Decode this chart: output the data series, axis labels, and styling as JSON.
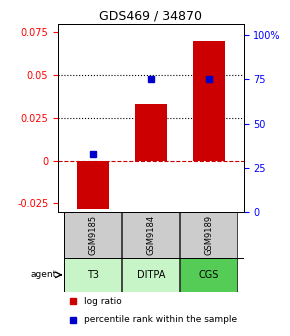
{
  "title": "GDS469 / 34870",
  "samples": [
    "GSM9185",
    "GSM9184",
    "GSM9189"
  ],
  "agents": [
    "T3",
    "DITPA",
    "CGS"
  ],
  "log_ratios": [
    -0.028,
    0.033,
    0.07
  ],
  "percentile_ranks_pct": [
    33,
    75,
    75
  ],
  "bar_color": "#cc0000",
  "dot_color": "#0000cc",
  "ylim_left": [
    -0.03,
    0.08
  ],
  "ylim_right": [
    0,
    106.67
  ],
  "yticks_left": [
    -0.025,
    0,
    0.025,
    0.05,
    0.075
  ],
  "yticks_right": [
    0,
    25,
    50,
    75,
    100
  ],
  "ytick_labels_right": [
    "0",
    "25",
    "50",
    "75",
    "100%"
  ],
  "dotted_lines": [
    0.025,
    0.05
  ],
  "zero_line": 0,
  "agent_colors": [
    "#c8f5c8",
    "#c8f5c8",
    "#55cc55"
  ],
  "gsm_color": "#cccccc",
  "bar_width": 0.55,
  "x_positions": [
    0,
    1,
    2
  ],
  "legend_log": "log ratio",
  "legend_pct": "percentile rank within the sample"
}
